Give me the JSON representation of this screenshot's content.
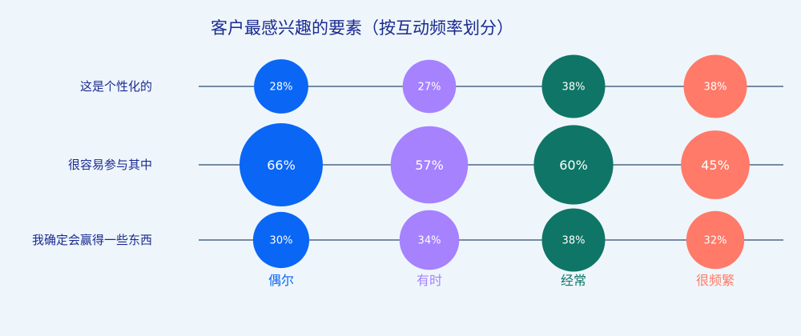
{
  "chart_data": {
    "type": "bubble-matrix",
    "title": "客户最感兴趣的要素（按互动频率划分）",
    "rows": [
      "这是个性化的",
      "很容易参与其中",
      "我确定会赢得一些东西"
    ],
    "columns": [
      "偶尔",
      "有时",
      "经常",
      "很频繁"
    ],
    "colors": [
      "#0a66f5",
      "#a682ff",
      "#0f7566",
      "#ff7a68"
    ],
    "values": [
      [
        28,
        27,
        38,
        38
      ],
      [
        66,
        57,
        60,
        45
      ],
      [
        30,
        34,
        38,
        32
      ]
    ],
    "unit": "%"
  }
}
